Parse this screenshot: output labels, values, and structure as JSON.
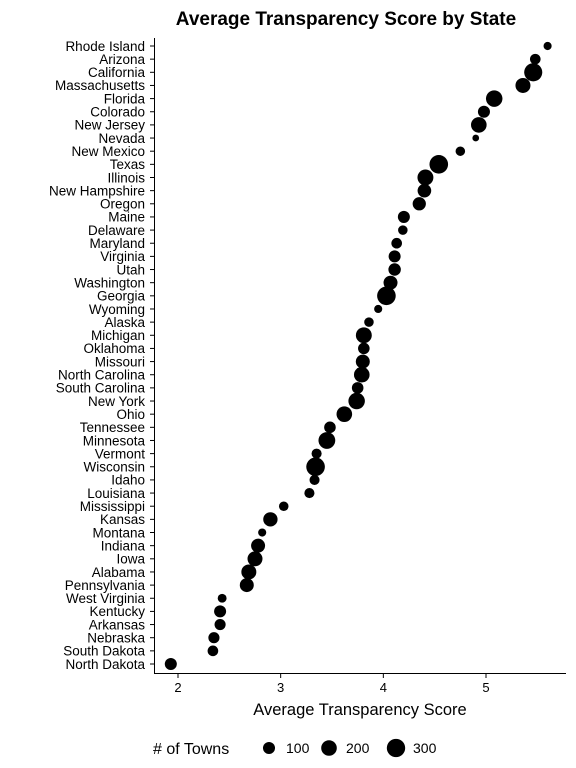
{
  "chart_data": {
    "type": "scatter",
    "title": "Average Transparency Score by State",
    "xlabel": "Average Transparency Score",
    "ylabel": "",
    "xlim": [
      1.75,
      5.8
    ],
    "xticks": [
      2,
      3,
      4,
      5
    ],
    "grid": false,
    "legend": {
      "title": "# of Towns",
      "placement": "bottom",
      "entries": [
        {
          "label": "100",
          "value": 100
        },
        {
          "label": "200",
          "value": 200
        },
        {
          "label": "300",
          "value": 300
        }
      ]
    },
    "points": [
      {
        "state": "Rhode Island",
        "score": 5.6,
        "towns": 30
      },
      {
        "state": "Arizona",
        "score": 5.48,
        "towns": 70
      },
      {
        "state": "California",
        "score": 5.46,
        "towns": 290
      },
      {
        "state": "Massachusetts",
        "score": 5.36,
        "towns": 180
      },
      {
        "state": "Florida",
        "score": 5.08,
        "towns": 230
      },
      {
        "state": "Colorado",
        "score": 4.98,
        "towns": 100
      },
      {
        "state": "New Jersey",
        "score": 4.93,
        "towns": 200
      },
      {
        "state": "Nevada",
        "score": 4.9,
        "towns": 15
      },
      {
        "state": "New Mexico",
        "score": 4.75,
        "towns": 50
      },
      {
        "state": "Texas",
        "score": 4.54,
        "towns": 310
      },
      {
        "state": "Illinois",
        "score": 4.41,
        "towns": 210
      },
      {
        "state": "New Hampshire",
        "score": 4.4,
        "towns": 140
      },
      {
        "state": "Oregon",
        "score": 4.35,
        "towns": 130
      },
      {
        "state": "Maine",
        "score": 4.2,
        "towns": 100
      },
      {
        "state": "Delaware",
        "score": 4.19,
        "towns": 50
      },
      {
        "state": "Maryland",
        "score": 4.13,
        "towns": 70
      },
      {
        "state": "Virginia",
        "score": 4.11,
        "towns": 100
      },
      {
        "state": "Utah",
        "score": 4.11,
        "towns": 110
      },
      {
        "state": "Washington",
        "score": 4.07,
        "towns": 150
      },
      {
        "state": "Georgia",
        "score": 4.03,
        "towns": 310
      },
      {
        "state": "Wyoming",
        "score": 3.95,
        "towns": 30
      },
      {
        "state": "Alaska",
        "score": 3.86,
        "towns": 50
      },
      {
        "state": "Michigan",
        "score": 3.81,
        "towns": 210
      },
      {
        "state": "Oklahoma",
        "score": 3.81,
        "towns": 90
      },
      {
        "state": "Missouri",
        "score": 3.8,
        "towns": 150
      },
      {
        "state": "North Carolina",
        "score": 3.79,
        "towns": 200
      },
      {
        "state": "South Carolina",
        "score": 3.75,
        "towns": 90
      },
      {
        "state": "New York",
        "score": 3.74,
        "towns": 230
      },
      {
        "state": "Ohio",
        "score": 3.62,
        "towns": 200
      },
      {
        "state": "Tennessee",
        "score": 3.48,
        "towns": 90
      },
      {
        "state": "Minnesota",
        "score": 3.45,
        "towns": 240
      },
      {
        "state": "Vermont",
        "score": 3.35,
        "towns": 60
      },
      {
        "state": "Wisconsin",
        "score": 3.34,
        "towns": 310
      },
      {
        "state": "Idaho",
        "score": 3.33,
        "towns": 60
      },
      {
        "state": "Louisiana",
        "score": 3.28,
        "towns": 60
      },
      {
        "state": "Mississippi",
        "score": 3.03,
        "towns": 50
      },
      {
        "state": "Kansas",
        "score": 2.9,
        "towns": 160
      },
      {
        "state": "Montana",
        "score": 2.82,
        "towns": 30
      },
      {
        "state": "Indiana",
        "score": 2.78,
        "towns": 150
      },
      {
        "state": "Iowa",
        "score": 2.75,
        "towns": 180
      },
      {
        "state": "Alabama",
        "score": 2.69,
        "towns": 180
      },
      {
        "state": "Pennsylvania",
        "score": 2.67,
        "towns": 150
      },
      {
        "state": "West Virginia",
        "score": 2.43,
        "towns": 40
      },
      {
        "state": "Kentucky",
        "score": 2.41,
        "towns": 100
      },
      {
        "state": "Arkansas",
        "score": 2.41,
        "towns": 80
      },
      {
        "state": "Nebraska",
        "score": 2.35,
        "towns": 80
      },
      {
        "state": "South Dakota",
        "score": 2.34,
        "towns": 70
      },
      {
        "state": "North Dakota",
        "score": 1.93,
        "towns": 100
      }
    ]
  }
}
